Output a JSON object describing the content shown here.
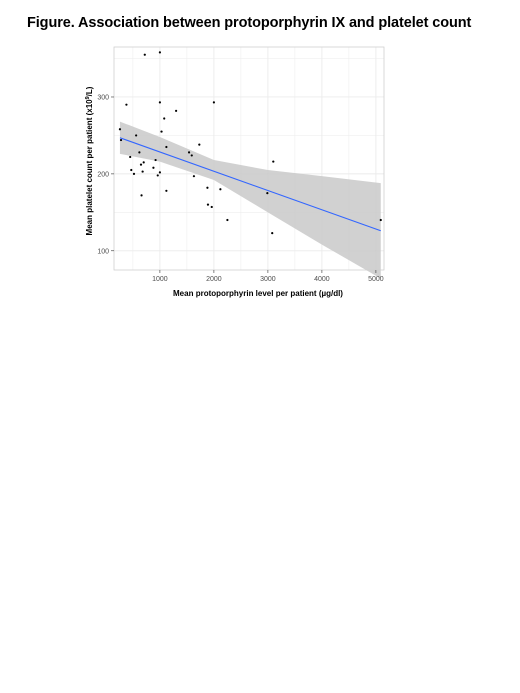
{
  "figure": {
    "title": "Figure. Association between protoporphyrin IX and platelet count"
  },
  "chart_data": {
    "type": "scatter",
    "xlabel": "Mean protoporphyrin level per patient (µg/dl)",
    "ylabel_parts": {
      "prefix": "Mean platelet count per patient (x10",
      "sup": "9",
      "suffix": "/L)"
    },
    "xlim": [
      150,
      5150
    ],
    "ylim": [
      75,
      365
    ],
    "x_ticks": [
      1000,
      2000,
      3000,
      4000,
      5000
    ],
    "y_ticks": [
      100,
      200,
      300
    ],
    "x_tick_labels": [
      "1000",
      "2000",
      "3000",
      "4000",
      "5000"
    ],
    "y_tick_labels": [
      "100",
      "200",
      "300"
    ],
    "grid": true,
    "points": [
      {
        "x": 260,
        "y": 258
      },
      {
        "x": 280,
        "y": 244
      },
      {
        "x": 380,
        "y": 290
      },
      {
        "x": 450,
        "y": 222
      },
      {
        "x": 470,
        "y": 205
      },
      {
        "x": 520,
        "y": 200
      },
      {
        "x": 560,
        "y": 250
      },
      {
        "x": 620,
        "y": 228
      },
      {
        "x": 650,
        "y": 212
      },
      {
        "x": 700,
        "y": 215
      },
      {
        "x": 680,
        "y": 203
      },
      {
        "x": 660,
        "y": 172
      },
      {
        "x": 720,
        "y": 355
      },
      {
        "x": 880,
        "y": 208
      },
      {
        "x": 920,
        "y": 218
      },
      {
        "x": 960,
        "y": 198
      },
      {
        "x": 1000,
        "y": 202
      },
      {
        "x": 1000,
        "y": 358
      },
      {
        "x": 1000,
        "y": 293
      },
      {
        "x": 1030,
        "y": 255
      },
      {
        "x": 1080,
        "y": 272
      },
      {
        "x": 1120,
        "y": 235
      },
      {
        "x": 1120,
        "y": 178
      },
      {
        "x": 1300,
        "y": 282
      },
      {
        "x": 1540,
        "y": 228
      },
      {
        "x": 1590,
        "y": 224
      },
      {
        "x": 1630,
        "y": 197
      },
      {
        "x": 1730,
        "y": 238
      },
      {
        "x": 1880,
        "y": 182
      },
      {
        "x": 1890,
        "y": 160
      },
      {
        "x": 1960,
        "y": 157
      },
      {
        "x": 2000,
        "y": 293
      },
      {
        "x": 2120,
        "y": 180
      },
      {
        "x": 2250,
        "y": 140
      },
      {
        "x": 2990,
        "y": 175
      },
      {
        "x": 3080,
        "y": 123
      },
      {
        "x": 3100,
        "y": 216
      },
      {
        "x": 5090,
        "y": 140
      }
    ],
    "fit_line": {
      "x": [
        260,
        5090
      ],
      "y": [
        247,
        126
      ],
      "color": "#3366ff"
    },
    "confidence_band": {
      "x": [
        260,
        1000,
        2000,
        3000,
        4000,
        5090
      ],
      "upper": [
        268,
        248,
        218,
        205,
        197,
        188
      ],
      "lower": [
        226,
        216,
        192,
        150,
        108,
        64
      ],
      "color": "#c9c9c9"
    },
    "colors": {
      "panel_border": "#d0d0d0",
      "grid": "#ebebeb",
      "points": "#000000"
    }
  }
}
